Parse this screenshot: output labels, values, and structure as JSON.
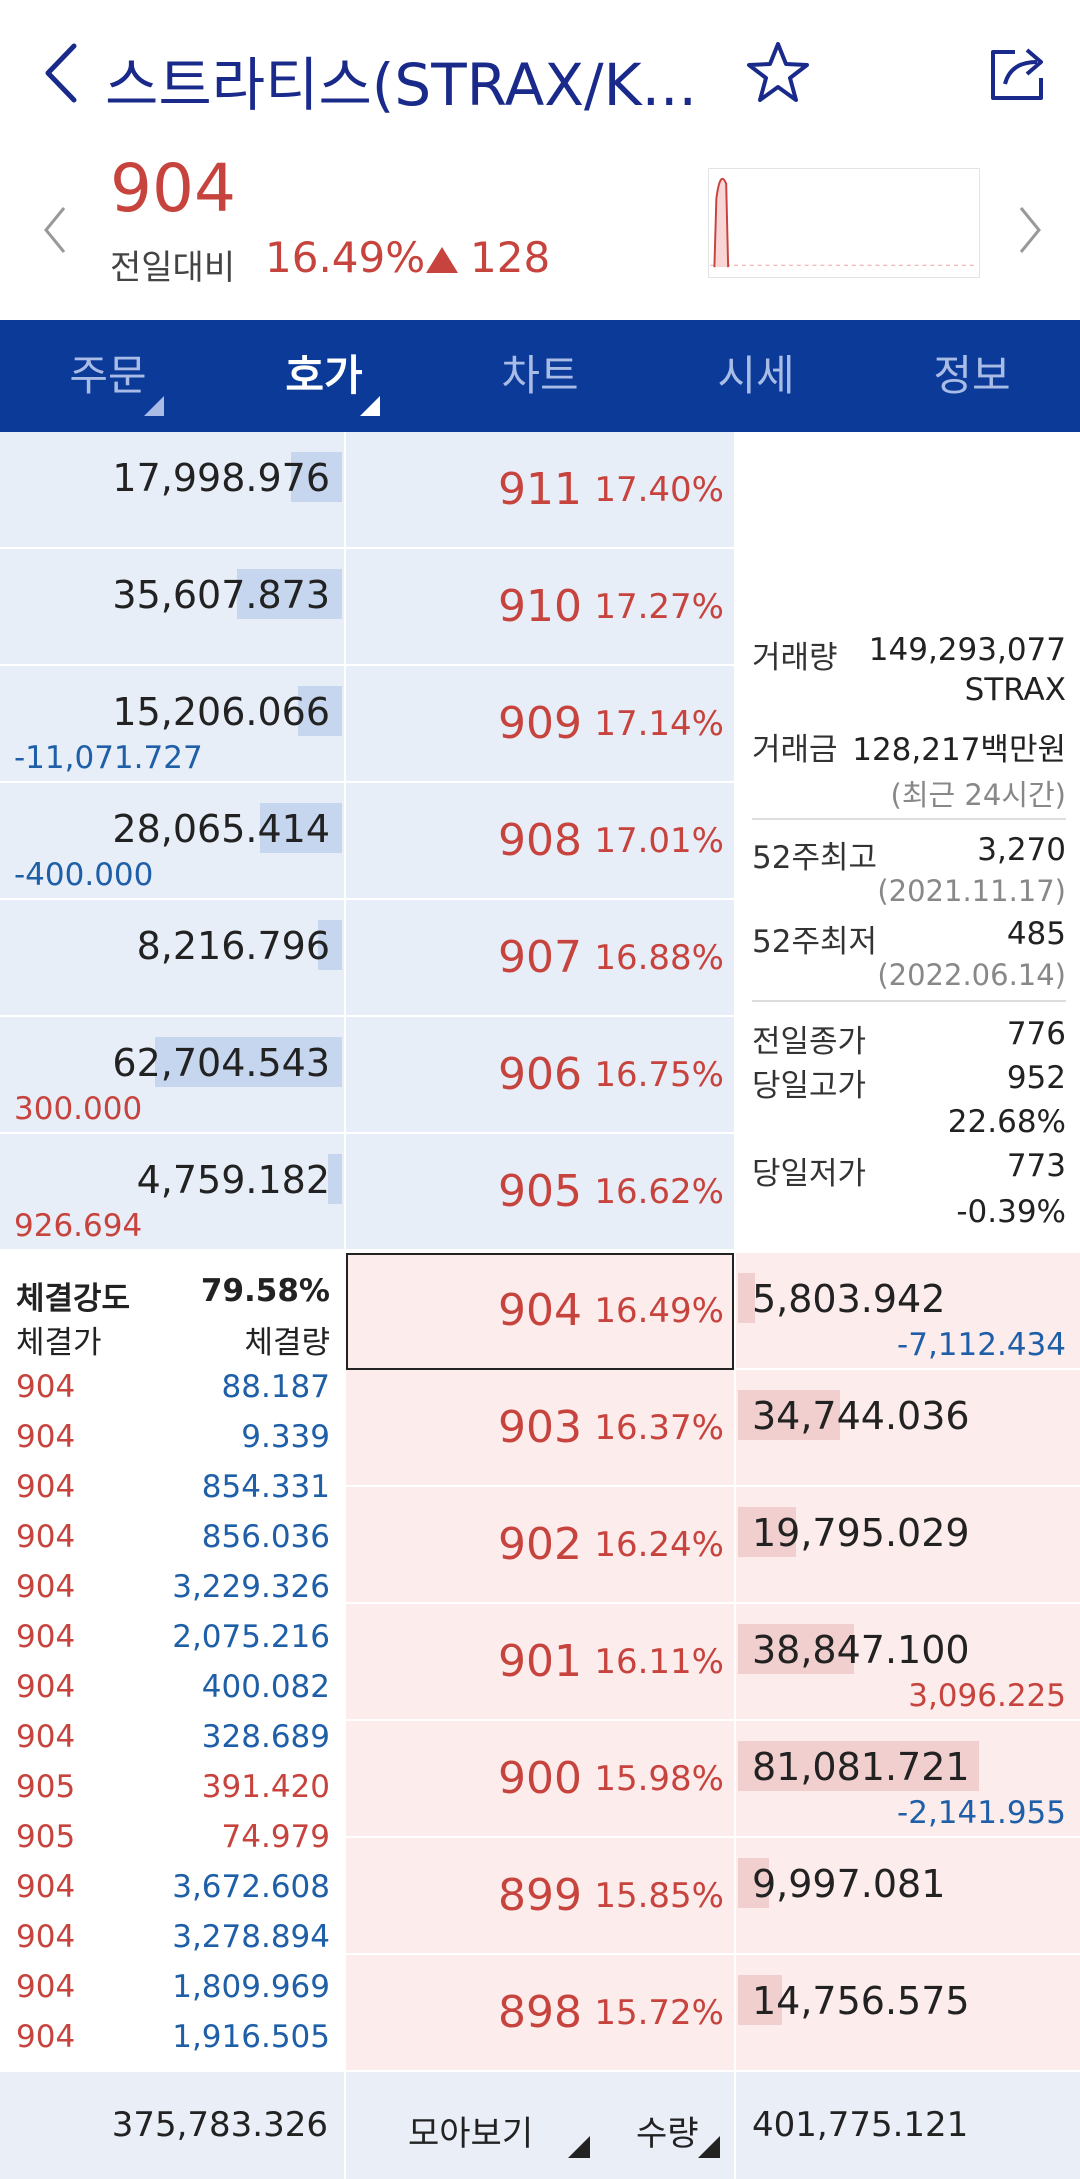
{
  "header": {
    "title": "스트라티스(STRAX/K...",
    "icons": {
      "back": "chevron-left-icon",
      "favorite": "star-icon",
      "share": "share-icon"
    }
  },
  "price": {
    "current": "904",
    "change_label": "전일대비",
    "change_pct": "16.49%",
    "change_value": "128",
    "direction": "up",
    "up_color": "#c7433d"
  },
  "tabs": [
    {
      "label": "주문",
      "active": false
    },
    {
      "label": "호가",
      "active": true
    },
    {
      "label": "차트",
      "active": false
    },
    {
      "label": "시세",
      "active": false
    },
    {
      "label": "정보",
      "active": false
    }
  ],
  "asks": [
    {
      "qty": "17,998.976",
      "change": "",
      "price": "911",
      "pct": "17.40%",
      "bar": 0.15
    },
    {
      "qty": "35,607.873",
      "change": "",
      "price": "910",
      "pct": "17.27%",
      "bar": 0.31
    },
    {
      "qty": "15,206.066",
      "change": "-11,071.727",
      "price": "909",
      "pct": "17.14%",
      "bar": 0.13
    },
    {
      "qty": "28,065.414",
      "change": "-400.000",
      "price": "908",
      "pct": "17.01%",
      "bar": 0.24
    },
    {
      "qty": "8,216.796",
      "change": "",
      "price": "907",
      "pct": "16.88%",
      "bar": 0.07
    },
    {
      "qty": "62,704.543",
      "change": "300.000",
      "price": "906",
      "pct": "16.75%",
      "bar": 0.55
    },
    {
      "qty": "4,759.182",
      "change": "926.694",
      "price": "905",
      "pct": "16.62%",
      "bar": 0.04
    }
  ],
  "bids": [
    {
      "qty": "5,803.942",
      "change": "-7,112.434",
      "price": "904",
      "pct": "16.49%",
      "bar": 0.05,
      "current": true
    },
    {
      "qty": "34,744.036",
      "change": "",
      "price": "903",
      "pct": "16.37%",
      "bar": 0.3
    },
    {
      "qty": "19,795.029",
      "change": "",
      "price": "902",
      "pct": "16.24%",
      "bar": 0.17
    },
    {
      "qty": "38,847.100",
      "change": "3,096.225",
      "price": "901",
      "pct": "16.11%",
      "bar": 0.34
    },
    {
      "qty": "81,081.721",
      "change": "-2,141.955",
      "price": "900",
      "pct": "15.98%",
      "bar": 0.71
    },
    {
      "qty": "9,997.081",
      "change": "",
      "price": "899",
      "pct": "15.85%",
      "bar": 0.09
    },
    {
      "qty": "14,756.575",
      "change": "",
      "price": "898",
      "pct": "15.72%",
      "bar": 0.13
    }
  ],
  "info": {
    "volume_label": "거래량",
    "volume_value": "149,293,077",
    "volume_unit": "STRAX",
    "amount_label": "거래금",
    "amount_value": "128,217백만원",
    "amount_note": "(최근 24시간)",
    "high52_label": "52주최고",
    "high52_value": "3,270",
    "high52_date": "(2021.11.17)",
    "low52_label": "52주최저",
    "low52_value": "485",
    "low52_date": "(2022.06.14)",
    "prev_close_label": "전일종가",
    "prev_close_value": "776",
    "day_high_label": "당일고가",
    "day_high_value": "952",
    "day_high_pct": "22.68%",
    "day_low_label": "당일저가",
    "day_low_value": "773",
    "day_low_pct": "-0.39%"
  },
  "trades": {
    "strength_label": "체결강도",
    "strength_value": "79.58%",
    "col_price": "체결가",
    "col_qty": "체결량",
    "rows": [
      {
        "price": "904",
        "qty": "88.187",
        "side": "buy"
      },
      {
        "price": "904",
        "qty": "9.339",
        "side": "buy"
      },
      {
        "price": "904",
        "qty": "854.331",
        "side": "buy"
      },
      {
        "price": "904",
        "qty": "856.036",
        "side": "buy"
      },
      {
        "price": "904",
        "qty": "3,229.326",
        "side": "buy"
      },
      {
        "price": "904",
        "qty": "2,075.216",
        "side": "buy"
      },
      {
        "price": "904",
        "qty": "400.082",
        "side": "buy"
      },
      {
        "price": "904",
        "qty": "328.689",
        "side": "buy"
      },
      {
        "price": "905",
        "qty": "391.420",
        "side": "sell"
      },
      {
        "price": "905",
        "qty": "74.979",
        "side": "sell"
      },
      {
        "price": "904",
        "qty": "3,672.608",
        "side": "buy"
      },
      {
        "price": "904",
        "qty": "3,278.894",
        "side": "buy"
      },
      {
        "price": "904",
        "qty": "1,809.969",
        "side": "buy"
      },
      {
        "price": "904",
        "qty": "1,916.505",
        "side": "buy"
      }
    ]
  },
  "bottom": {
    "total_ask": "375,783.326",
    "btn_collect": "모아보기",
    "btn_quantity": "수량",
    "total_bid": "401,775.121"
  },
  "colors": {
    "up": "#c7433d",
    "down": "#1e5fa8",
    "nav": "#0b3a98"
  }
}
